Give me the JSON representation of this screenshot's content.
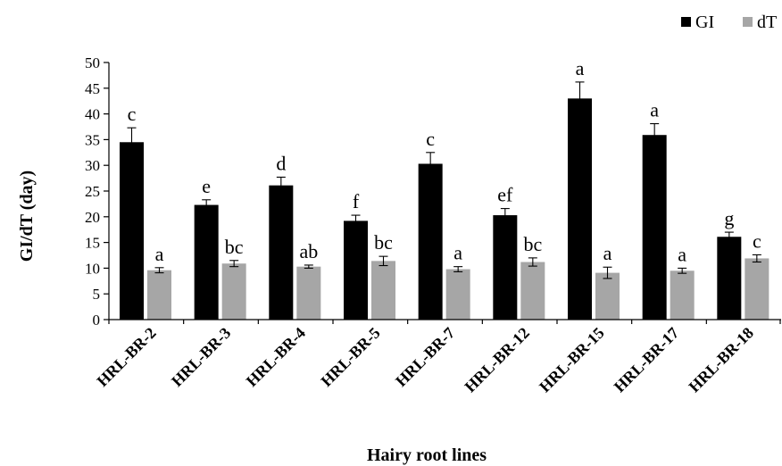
{
  "chart_data": {
    "type": "bar",
    "ylabel": "GI/dT (day)",
    "xlabel": "Hairy root lines",
    "ylim": [
      0,
      50
    ],
    "yticks": [
      0,
      5,
      10,
      15,
      20,
      25,
      30,
      35,
      40,
      45,
      50
    ],
    "legend_position": "top-right",
    "grid": false,
    "categories": [
      "HRL-BR-2",
      "HRL-BR-3",
      "HRL-BR-4",
      "HRL-BR-5",
      "HRL-BR-7",
      "HRL-BR-12",
      "HRL-BR-15",
      "HRL-BR-17",
      "HRL-BR-18"
    ],
    "series": [
      {
        "name": "GI",
        "color": "#000000",
        "values": [
          34.5,
          22.3,
          26.1,
          19.2,
          30.3,
          20.3,
          43.0,
          35.9,
          16.1
        ],
        "errors": [
          2.8,
          1.0,
          1.6,
          1.1,
          2.2,
          1.3,
          3.2,
          2.2,
          0.9
        ],
        "labels": [
          "c",
          "e",
          "d",
          "f",
          "c",
          "ef",
          "a",
          "a",
          "g"
        ]
      },
      {
        "name": "dT",
        "color": "#a6a6a6",
        "values": [
          9.6,
          10.9,
          10.3,
          11.4,
          9.8,
          11.2,
          9.1,
          9.5,
          11.9
        ],
        "errors": [
          0.5,
          0.6,
          0.3,
          0.9,
          0.5,
          0.8,
          1.1,
          0.5,
          0.7
        ],
        "labels": [
          "a",
          "bc",
          "ab",
          "bc",
          "a",
          "bc",
          "a",
          "a",
          "c"
        ]
      }
    ]
  }
}
